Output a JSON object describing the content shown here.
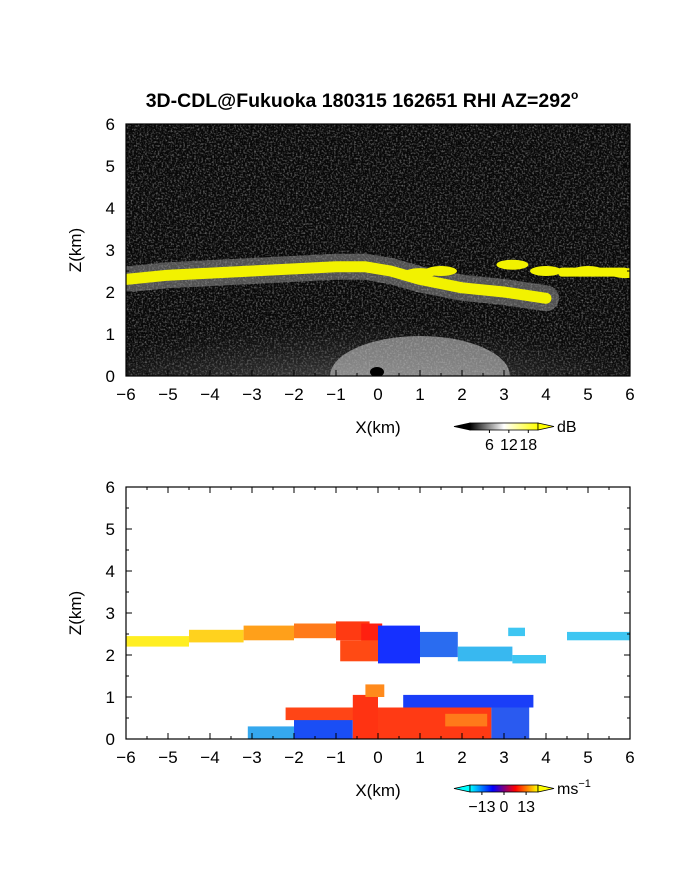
{
  "title": "3D-CDL@Fukuoka 180315 162651 RHI AZ=292",
  "title_superscript": "o",
  "chart_data": [
    {
      "type": "heatmap",
      "name": "backscatter",
      "xlabel": "X(km)",
      "ylabel": "Z(km)",
      "xlim": [
        -6,
        6
      ],
      "ylim": [
        0,
        6
      ],
      "xticks": [
        "−6",
        "−5",
        "−4",
        "−3",
        "−2",
        "−1",
        "0",
        "1",
        "2",
        "3",
        "4",
        "5",
        "6"
      ],
      "yticks": [
        "0",
        "1",
        "2",
        "3",
        "4",
        "5",
        "6"
      ],
      "colorbar": {
        "unit": "dB",
        "ticks": [
          "6",
          "12",
          "18"
        ],
        "tick_values": [
          6,
          12,
          18
        ],
        "range": [
          0,
          21
        ],
        "colors": [
          "#000000",
          "#ffffff",
          "#ffff00"
        ]
      },
      "features": {
        "cloud_layer": [
          [
            -6,
            2.3
          ],
          [
            -5,
            2.4
          ],
          [
            -4,
            2.45
          ],
          [
            -3,
            2.5
          ],
          [
            -2,
            2.55
          ],
          [
            -1,
            2.6
          ],
          [
            -0.3,
            2.6
          ],
          [
            0.3,
            2.5
          ],
          [
            1,
            2.3
          ],
          [
            2,
            2.1
          ],
          [
            3,
            2.0
          ],
          [
            4,
            1.85
          ]
        ],
        "cloud_upper_fragments": [
          [
            1.0,
            2.45
          ],
          [
            1.5,
            2.5
          ],
          [
            3.2,
            2.65
          ],
          [
            4.0,
            2.5
          ],
          [
            5.0,
            2.5
          ],
          [
            5.9,
            2.45
          ]
        ],
        "boundary_layer_top_km": 1.0
      }
    },
    {
      "type": "heatmap",
      "name": "radial_velocity",
      "xlabel": "X(km)",
      "ylabel": "Z(km)",
      "xlim": [
        -6,
        6
      ],
      "ylim": [
        0,
        6
      ],
      "xticks": [
        "−6",
        "−5",
        "−4",
        "−3",
        "−2",
        "−1",
        "0",
        "1",
        "2",
        "3",
        "4",
        "5",
        "6"
      ],
      "yticks": [
        "0",
        "1",
        "2",
        "3",
        "4",
        "5",
        "6"
      ],
      "colorbar": {
        "unit": "ms",
        "unit_superscript": "−1",
        "ticks": [
          "−13",
          "0",
          "13"
        ],
        "tick_values": [
          -13,
          0,
          13
        ],
        "range": [
          -20,
          20
        ],
        "colors": [
          "#00ffff",
          "#0000ff",
          "#ff0000",
          "#ffff00"
        ]
      }
    }
  ]
}
